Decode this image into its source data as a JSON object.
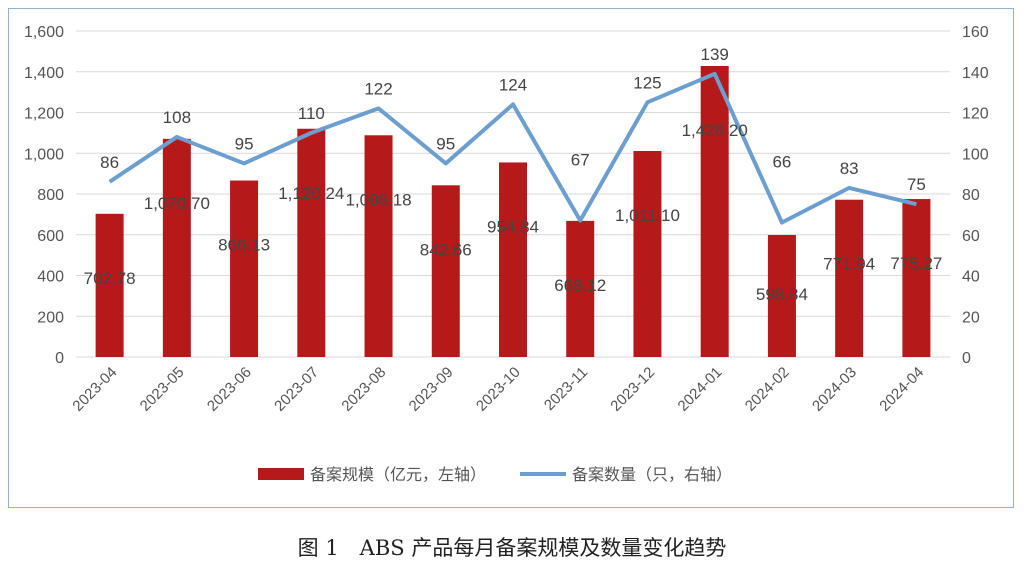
{
  "chart_data": {
    "type": "bar+line",
    "categories": [
      "2023-04",
      "2023-05",
      "2023-06",
      "2023-07",
      "2023-08",
      "2023-09",
      "2023-10",
      "2023-11",
      "2023-12",
      "2024-01",
      "2024-02",
      "2024-03",
      "2024-04"
    ],
    "series": [
      {
        "name": "备案规模（亿元，左轴）",
        "type": "bar",
        "axis": "left",
        "color": "#b5191a",
        "values": [
          702.78,
          1070.7,
          866.13,
          1120.24,
          1088.18,
          842.66,
          954.84,
          668.12,
          1011.1,
          1428.2,
          598.84,
          771.94,
          775.27
        ],
        "labels": [
          "702.78",
          "1,070.70",
          "866.13",
          "1,120.24",
          "1,088.18",
          "842.66",
          "954.84",
          "668.12",
          "1,011.10",
          "1,428.20",
          "598.84",
          "771.94",
          "775.27"
        ]
      },
      {
        "name": "备案数量（只，右轴）",
        "type": "line",
        "axis": "right",
        "color": "#6c9fd0",
        "values": [
          86,
          108,
          95,
          110,
          122,
          95,
          124,
          67,
          125,
          139,
          66,
          83,
          75
        ]
      }
    ],
    "y_left": {
      "range": [
        0,
        1600
      ],
      "ticks": [
        "0",
        "200",
        "400",
        "600",
        "800",
        "1,000",
        "1,200",
        "1,400",
        "1,600"
      ]
    },
    "y_right": {
      "range": [
        0,
        160
      ],
      "ticks": [
        "0",
        "20",
        "40",
        "60",
        "80",
        "100",
        "120",
        "140",
        "160"
      ]
    },
    "grid": true,
    "legend": "bottom"
  },
  "caption": "图 1　ABS 产品每月备案规模及数量变化趋势"
}
